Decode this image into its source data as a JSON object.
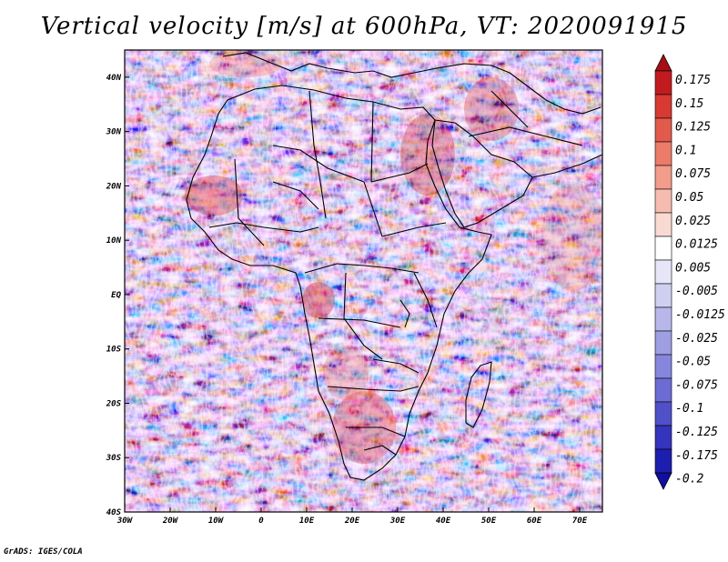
{
  "title": "Vertical velocity [m/s] at 600hPa, VT: 2020091915",
  "credit": "GrADS: IGES/COLA",
  "map": {
    "lon_range": [
      -30,
      75
    ],
    "lat_range": [
      -40,
      45
    ],
    "lon_ticks": [
      "30W",
      "20W",
      "10W",
      "0",
      "10E",
      "20E",
      "30E",
      "40E",
      "50E",
      "60E",
      "70E"
    ],
    "lat_ticks": [
      "40N",
      "30N",
      "20N",
      "10N",
      "EQ",
      "10S",
      "20S",
      "30S",
      "40S"
    ]
  },
  "colorbar": {
    "labels": [
      "0.175",
      "0.15",
      "0.125",
      "0.1",
      "0.075",
      "0.05",
      "0.025",
      "0.0125",
      "0.005",
      "-0.005",
      "-0.0125",
      "-0.025",
      "-0.05",
      "-0.075",
      "-0.1",
      "-0.125",
      "-0.175",
      "-0.2"
    ],
    "colors": [
      "#a50f15",
      "#c21b1f",
      "#d63a32",
      "#e25a4c",
      "#ec7b6a",
      "#f29c8c",
      "#f6bcb0",
      "#f9dad2",
      "#ffffff",
      "#e6e6f8",
      "#cfcff1",
      "#b7b7ea",
      "#9e9ee3",
      "#8686dc",
      "#6c6cd4",
      "#5050c8",
      "#3434bd",
      "#1d1db0",
      "#0f0fa0"
    ]
  }
}
